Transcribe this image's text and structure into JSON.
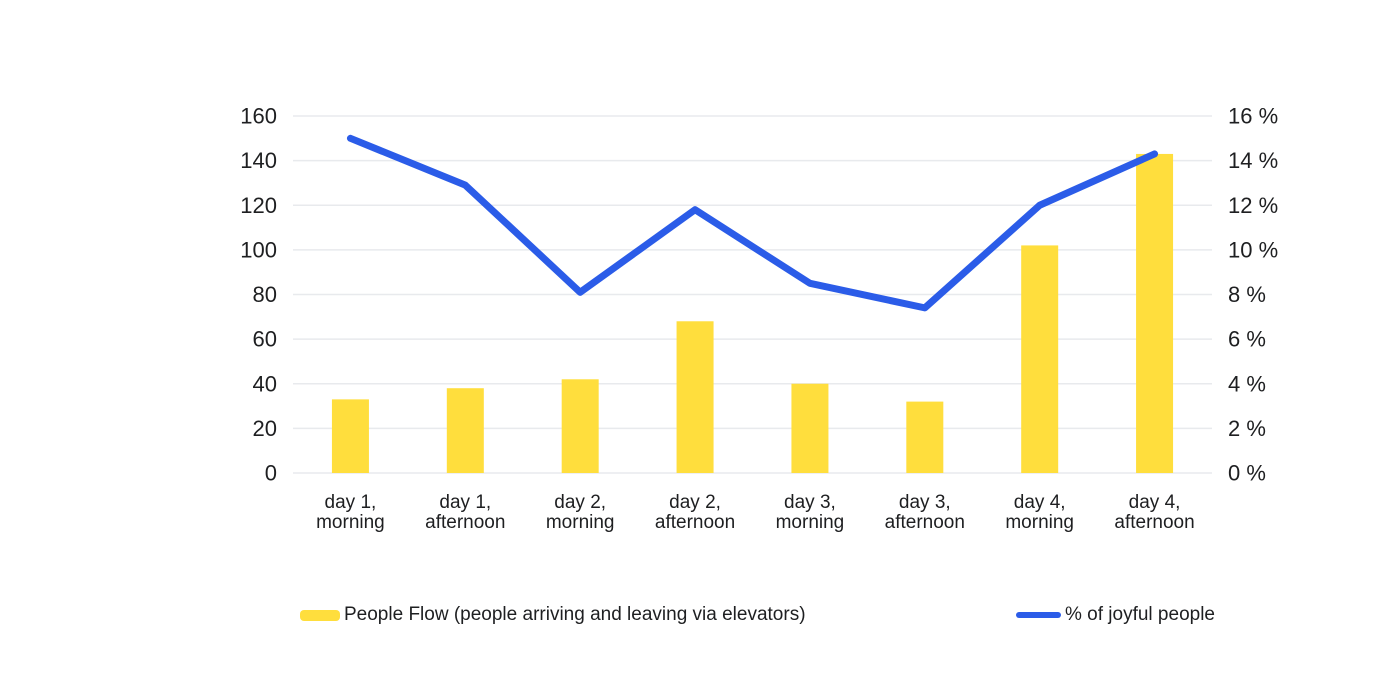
{
  "colors": {
    "background": "#FFFFFF",
    "grid": "#E8EAED",
    "text": "#1E1F21"
  },
  "chart_data": {
    "type": "composite",
    "categories": [
      "day 1, morning",
      "day 1, afternoon",
      "day 2, morning",
      "day 2, afternoon",
      "day 3, morning",
      "day 3, afternoon",
      "day 4, morning",
      "day 4, afternoon"
    ],
    "series": [
      {
        "name": "People Flow (people arriving and leaving via elevators)",
        "type": "bar",
        "axis": "left",
        "color": "#FFDE3D",
        "values": [
          33,
          38,
          42,
          68,
          40,
          32,
          102,
          143
        ]
      },
      {
        "name": "% of joyful people",
        "type": "line",
        "axis": "right",
        "color": "#2B5CE8",
        "values": [
          15,
          12.9,
          8.1,
          11.8,
          8.5,
          7.4,
          12,
          14.3
        ]
      }
    ],
    "left_axis": {
      "min": 0,
      "max": 160,
      "ticks": [
        160,
        140,
        120,
        100,
        80,
        60,
        40,
        20,
        0
      ]
    },
    "right_axis": {
      "min": 0,
      "max": 16,
      "ticks": [
        "16 %",
        "14 %",
        "12 %",
        "10 %",
        "8 %",
        "6 %",
        "4 %",
        "2 %",
        "0 %"
      ]
    },
    "title": "",
    "grid": true,
    "legend_position": "bottom"
  }
}
